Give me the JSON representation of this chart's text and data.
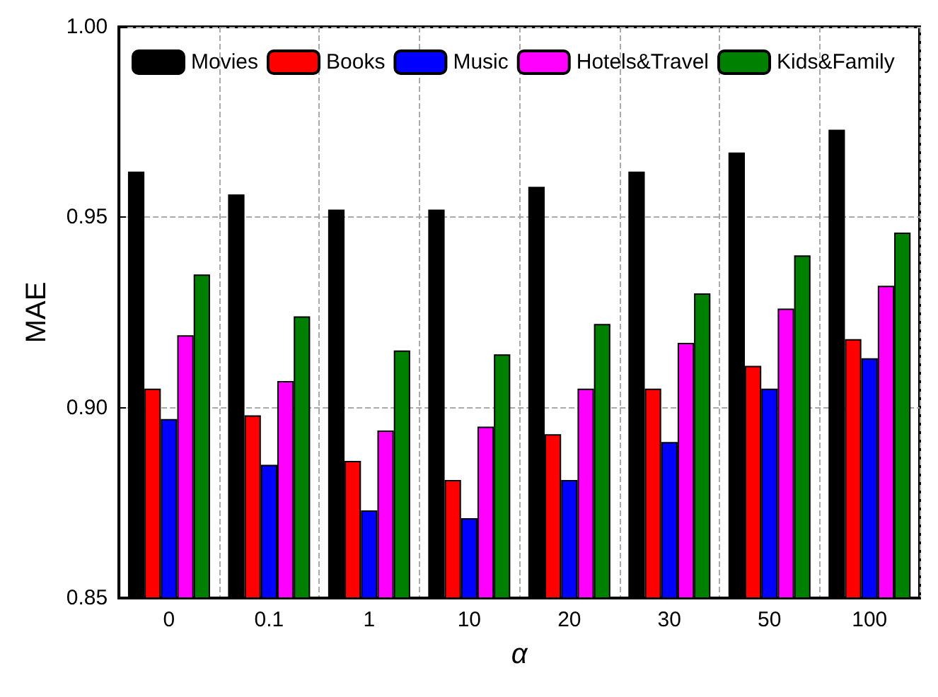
{
  "chart_data": {
    "type": "bar",
    "xlabel": "α",
    "ylabel": "MAE",
    "categories": [
      "0",
      "0.1",
      "1",
      "10",
      "20",
      "30",
      "50",
      "100"
    ],
    "series": [
      {
        "name": "Movies",
        "color": "#000000",
        "values": [
          0.962,
          0.956,
          0.952,
          0.952,
          0.958,
          0.962,
          0.967,
          0.973
        ]
      },
      {
        "name": "Books",
        "color": "#ff0000",
        "values": [
          0.905,
          0.898,
          0.886,
          0.881,
          0.893,
          0.905,
          0.911,
          0.918
        ]
      },
      {
        "name": "Music",
        "color": "#0000ff",
        "values": [
          0.897,
          0.885,
          0.873,
          0.871,
          0.881,
          0.891,
          0.905,
          0.913
        ]
      },
      {
        "name": "Hotels&Travel",
        "color": "#ff00ff",
        "values": [
          0.919,
          0.907,
          0.894,
          0.895,
          0.905,
          0.917,
          0.926,
          0.932
        ]
      },
      {
        "name": "Kids&Family",
        "color": "#008000",
        "values": [
          0.935,
          0.924,
          0.915,
          0.914,
          0.922,
          0.93,
          0.94,
          0.946
        ]
      }
    ],
    "ylim": [
      0.85,
      1.0
    ],
    "yticks": [
      {
        "value": 0.85,
        "label": "0.85"
      },
      {
        "value": 0.9,
        "label": "0.90"
      },
      {
        "value": 0.95,
        "label": "0.95"
      },
      {
        "value": 1.0,
        "label": "1.00"
      }
    ],
    "grid": true,
    "legend": "top"
  }
}
